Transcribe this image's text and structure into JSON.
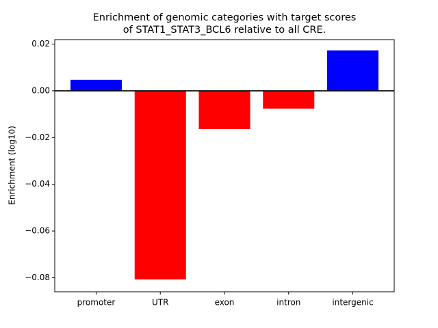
{
  "chart_data": {
    "type": "bar",
    "title": [
      "Enrichment of genomic categories with target scores",
      "of STAT1_STAT3_BCL6 relative to all CRE."
    ],
    "y_label": "Enrichment (log10)",
    "categories": [
      "promoter",
      "UTR",
      "exon",
      "intron",
      "intergenic"
    ],
    "values": [
      0.0047,
      -0.0807,
      -0.0164,
      -0.0076,
      0.0173
    ],
    "colors": [
      "#0000ff",
      "#ff0000",
      "#ff0000",
      "#ff0000",
      "#0000ff"
    ],
    "ylim": [
      -0.086,
      0.0219
    ],
    "yticks": [
      {
        "value": -0.08,
        "label": "−0.08"
      },
      {
        "value": -0.06,
        "label": "−0.06"
      },
      {
        "value": -0.04,
        "label": "−0.04"
      },
      {
        "value": -0.02,
        "label": "−0.02"
      },
      {
        "value": 0,
        "label": "0.00"
      },
      0.02
    ]
  }
}
